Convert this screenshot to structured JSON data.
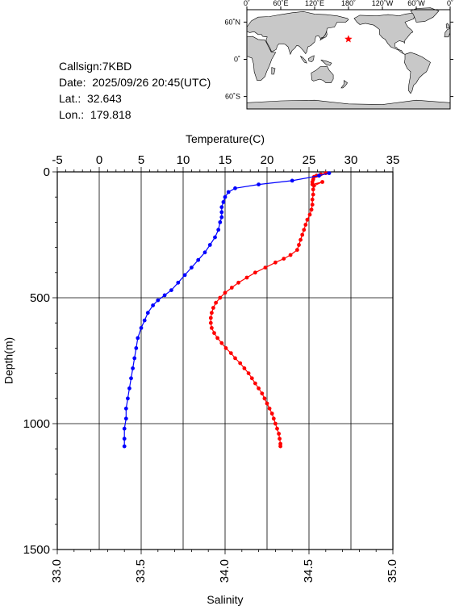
{
  "info": {
    "callsign": "Callsign:7KBD",
    "date": "Date:  2025/09/26 20:45(UTC)",
    "lat": "Lat.:  32.643",
    "lon": "Lon.:  179.818"
  },
  "map": {
    "top_labels": [
      "0˚",
      "60˚E",
      "120˚E",
      "180˚",
      "120˚W",
      "60˚W",
      "0˚"
    ],
    "left_labels": [
      "60˚N",
      "0˚",
      "60˚S"
    ],
    "land_color": "#c8c8c8",
    "sea_color": "#ffffff",
    "marker_color": "#ff0000",
    "marker_symbol": "star",
    "marker_lon": 179.818,
    "marker_lat": 32.643
  },
  "chart_data": {
    "type": "line",
    "xlabel_top": "Temperature(C)",
    "xlabel_bottom": "Salinity",
    "ylabel": "Depth(m)",
    "temperature_ticks": [
      "-5",
      "0",
      "5",
      "10",
      "15",
      "20",
      "25",
      "30",
      "35"
    ],
    "temperature_range": [
      -5,
      35
    ],
    "salinity_ticks": [
      "33.0",
      "33.5",
      "34.0",
      "34.5",
      "35.0"
    ],
    "salinity_range": [
      33.0,
      35.0
    ],
    "depth_ticks": [
      "0",
      "500",
      "1000",
      "1500"
    ],
    "depth_range": [
      0,
      1500
    ],
    "grid": true,
    "series": [
      {
        "quantity": "temperature",
        "color": "#ff0000",
        "points": [
          [
            27.0,
            5
          ],
          [
            26.4,
            10
          ],
          [
            25.9,
            15
          ],
          [
            25.6,
            20
          ],
          [
            25.5,
            30
          ],
          [
            25.4,
            40
          ],
          [
            25.4,
            50
          ],
          [
            26.6,
            40
          ],
          [
            25.6,
            55
          ],
          [
            25.5,
            70
          ],
          [
            25.5,
            90
          ],
          [
            25.4,
            110
          ],
          [
            25.4,
            130
          ],
          [
            25.3,
            150
          ],
          [
            25.1,
            170
          ],
          [
            24.8,
            190
          ],
          [
            24.6,
            210
          ],
          [
            24.4,
            230
          ],
          [
            24.2,
            250
          ],
          [
            24.0,
            270
          ],
          [
            23.8,
            290
          ],
          [
            23.6,
            310
          ],
          [
            22.8,
            330
          ],
          [
            22.0,
            345
          ],
          [
            21.0,
            360
          ],
          [
            19.8,
            380
          ],
          [
            18.6,
            400
          ],
          [
            17.6,
            420
          ],
          [
            16.6,
            440
          ],
          [
            15.8,
            460
          ],
          [
            15.0,
            480
          ],
          [
            14.4,
            500
          ],
          [
            13.9,
            520
          ],
          [
            13.6,
            540
          ],
          [
            13.4,
            560
          ],
          [
            13.3,
            580
          ],
          [
            13.3,
            600
          ],
          [
            13.4,
            620
          ],
          [
            13.7,
            640
          ],
          [
            14.1,
            660
          ],
          [
            14.6,
            680
          ],
          [
            15.1,
            700
          ],
          [
            15.7,
            720
          ],
          [
            16.2,
            740
          ],
          [
            16.8,
            760
          ],
          [
            17.3,
            780
          ],
          [
            17.8,
            800
          ],
          [
            18.2,
            820
          ],
          [
            18.6,
            840
          ],
          [
            19.0,
            860
          ],
          [
            19.4,
            880
          ],
          [
            19.7,
            900
          ],
          [
            20.0,
            920
          ],
          [
            20.3,
            940
          ],
          [
            20.6,
            960
          ],
          [
            20.8,
            980
          ],
          [
            21.0,
            1000
          ],
          [
            21.2,
            1020
          ],
          [
            21.4,
            1040
          ],
          [
            21.5,
            1060
          ],
          [
            21.6,
            1080
          ],
          [
            21.6,
            1090
          ]
        ]
      },
      {
        "quantity": "salinity",
        "color": "#0000ff",
        "points": [
          [
            34.62,
            5
          ],
          [
            34.56,
            15
          ],
          [
            34.4,
            35
          ],
          [
            34.2,
            50
          ],
          [
            34.06,
            65
          ],
          [
            34.02,
            80
          ],
          [
            34.0,
            100
          ],
          [
            33.99,
            120
          ],
          [
            33.98,
            140
          ],
          [
            33.98,
            160
          ],
          [
            33.98,
            180
          ],
          [
            33.97,
            200
          ],
          [
            33.96,
            230
          ],
          [
            33.94,
            260
          ],
          [
            33.91,
            290
          ],
          [
            33.88,
            320
          ],
          [
            33.84,
            350
          ],
          [
            33.8,
            380
          ],
          [
            33.76,
            410
          ],
          [
            33.72,
            440
          ],
          [
            33.68,
            470
          ],
          [
            33.64,
            490
          ],
          [
            33.6,
            510
          ],
          [
            33.57,
            530
          ],
          [
            33.54,
            560
          ],
          [
            33.52,
            590
          ],
          [
            33.5,
            620
          ],
          [
            33.48,
            660
          ],
          [
            33.47,
            700
          ],
          [
            33.46,
            740
          ],
          [
            33.45,
            780
          ],
          [
            33.44,
            820
          ],
          [
            33.43,
            860
          ],
          [
            33.42,
            900
          ],
          [
            33.41,
            940
          ],
          [
            33.41,
            980
          ],
          [
            33.4,
            1020
          ],
          [
            33.4,
            1060
          ],
          [
            33.4,
            1090
          ]
        ]
      }
    ]
  }
}
